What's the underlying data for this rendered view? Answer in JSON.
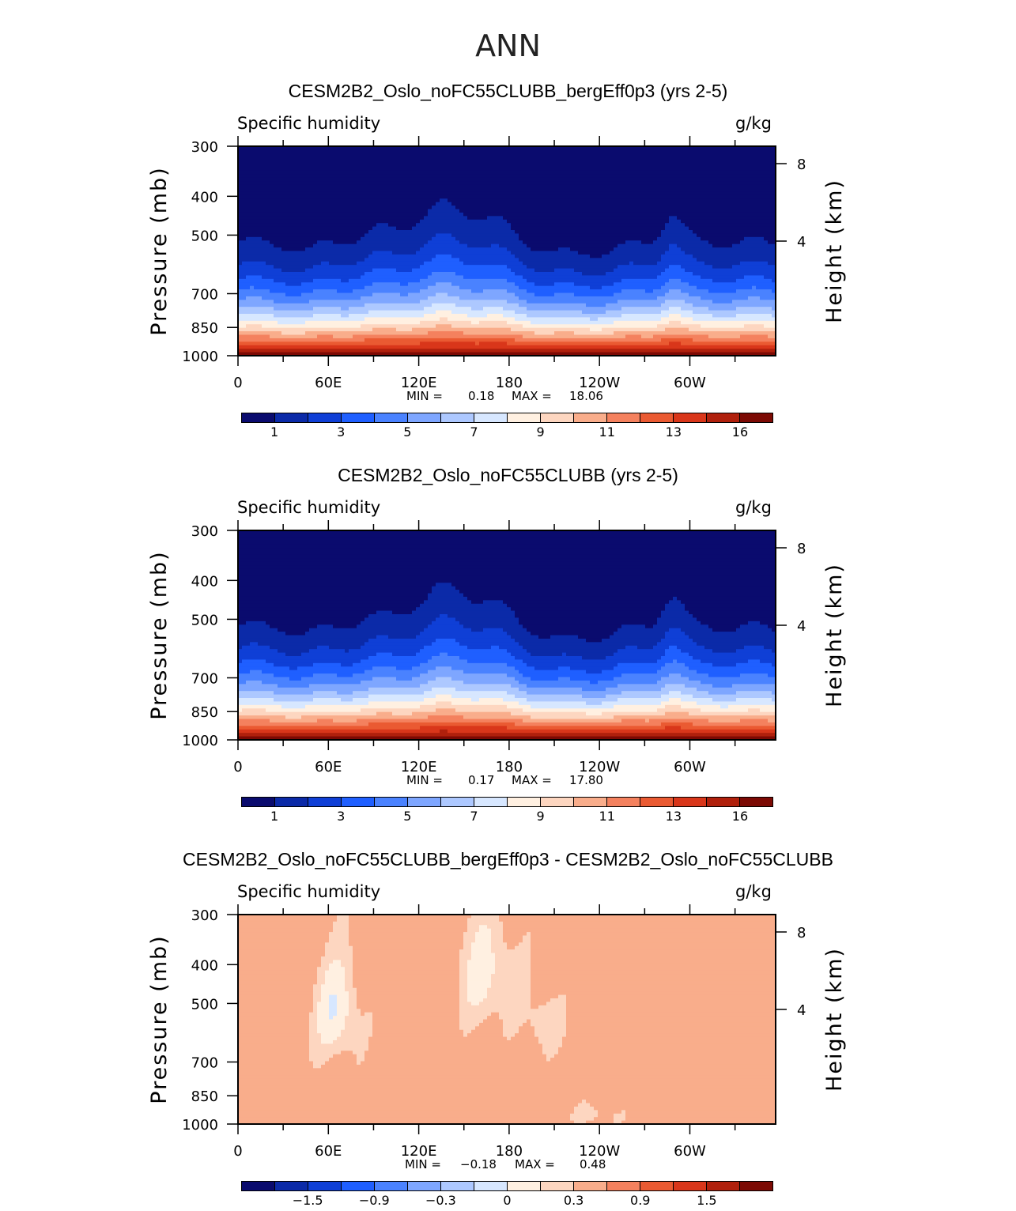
{
  "title": "ANN",
  "palette": [
    "#0a0b6e",
    "#0b2aa8",
    "#0f3fd6",
    "#1f5fff",
    "#4a82ff",
    "#7ea6ff",
    "#adc8ff",
    "#d7e7ff",
    "#fff0e1",
    "#fdd6c0",
    "#f9ad8b",
    "#f4815e",
    "#ea5a32",
    "#d9361a",
    "#b0200c",
    "#7c0a04"
  ],
  "chart_data": [
    {
      "type": "heatmap",
      "title": "CESM2B2_Oslo_noFC55CLUBB_bergEff0p3 (yrs 2-5)",
      "left_label": "Specific humidity",
      "right_label": "g/kg",
      "ylabel": "Pressure (mb)",
      "ylabel_right": "Height (km)",
      "x_ticklabels": [
        "0",
        "60E",
        "120E",
        "180",
        "120W",
        "60W"
      ],
      "y_ticklabels": [
        "300",
        "400",
        "500",
        "700",
        "850",
        "1000"
      ],
      "y_ticklabels_right": [
        "8",
        "4"
      ],
      "min": "0.18",
      "max": "18.06",
      "stats_min_label": "MIN =",
      "stats_max_label": "MAX =",
      "colorbar_labels": [
        "1",
        "3",
        "5",
        "7",
        "9",
        "11",
        "13",
        "16"
      ]
    },
    {
      "type": "heatmap",
      "title": "CESM2B2_Oslo_noFC55CLUBB (yrs 2-5)",
      "left_label": "Specific humidity",
      "right_label": "g/kg",
      "ylabel": "Pressure (mb)",
      "ylabel_right": "Height (km)",
      "x_ticklabels": [
        "0",
        "60E",
        "120E",
        "180",
        "120W",
        "60W"
      ],
      "y_ticklabels": [
        "300",
        "400",
        "500",
        "700",
        "850",
        "1000"
      ],
      "y_ticklabels_right": [
        "8",
        "4"
      ],
      "min": "0.17",
      "max": "17.80",
      "stats_min_label": "MIN =",
      "stats_max_label": "MAX =",
      "colorbar_labels": [
        "1",
        "3",
        "5",
        "7",
        "9",
        "11",
        "13",
        "16"
      ]
    },
    {
      "type": "heatmap",
      "title": "CESM2B2_Oslo_noFC55CLUBB_bergEff0p3 - CESM2B2_Oslo_noFC55CLUBB",
      "left_label": "Specific humidity",
      "right_label": "g/kg",
      "ylabel": "Pressure (mb)",
      "ylabel_right": "Height (km)",
      "x_ticklabels": [
        "0",
        "60E",
        "120E",
        "180",
        "120W",
        "60W"
      ],
      "y_ticklabels": [
        "300",
        "400",
        "500",
        "700",
        "850",
        "1000"
      ],
      "y_ticklabels_right": [
        "8",
        "4"
      ],
      "min": "−0.18",
      "max": "0.48",
      "stats_min_label": "MIN =",
      "stats_max_label": "MAX =",
      "colorbar_labels": [
        "−1.5",
        "−0.9",
        "−0.3",
        "0",
        "0.3",
        "0.9",
        "1.5"
      ]
    }
  ]
}
